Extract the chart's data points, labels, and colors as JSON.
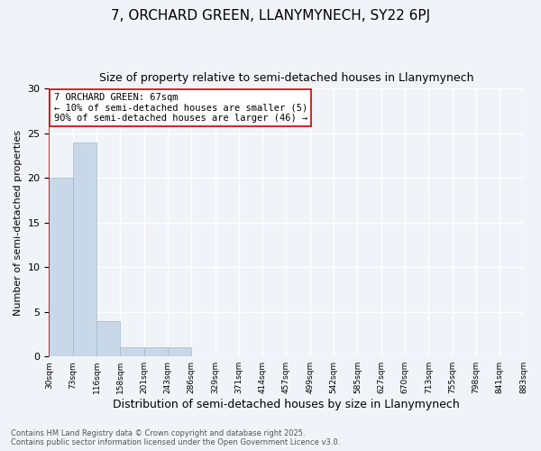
{
  "title": "7, ORCHARD GREEN, LLANYMYNECH, SY22 6PJ",
  "subtitle": "Size of property relative to semi-detached houses in Llanymynech",
  "xlabel": "Distribution of semi-detached houses by size in Llanymynech",
  "ylabel": "Number of semi-detached properties",
  "bar_values": [
    20,
    24,
    4,
    1,
    1,
    1,
    0,
    0,
    0,
    0,
    0,
    0,
    0,
    0,
    0,
    0,
    0,
    0,
    0,
    0
  ],
  "bin_labels": [
    "30sqm",
    "73sqm",
    "116sqm",
    "158sqm",
    "201sqm",
    "243sqm",
    "286sqm",
    "329sqm",
    "371sqm",
    "414sqm",
    "457sqm",
    "499sqm",
    "542sqm",
    "585sqm",
    "627sqm",
    "670sqm",
    "713sqm",
    "755sqm",
    "798sqm",
    "841sqm",
    "883sqm"
  ],
  "bar_color": "#c8d8e8",
  "bar_edge_color": "#a0b8cc",
  "vline_x": 0,
  "vline_color": "#cc0000",
  "annotation_box_text": "7 ORCHARD GREEN: 67sqm\n← 10% of semi-detached houses are smaller (5)\n90% of semi-detached houses are larger (46) →",
  "annotation_box_color": "#cc0000",
  "annotation_fontsize": 7.5,
  "ylim": [
    0,
    30
  ],
  "yticks": [
    0,
    5,
    10,
    15,
    20,
    25,
    30
  ],
  "background_color": "#f0f4f8",
  "grid_color": "#ffffff",
  "footer_text": "Contains HM Land Registry data © Crown copyright and database right 2025.\nContains public sector information licensed under the Open Government Licence v3.0.",
  "title_fontsize": 11,
  "subtitle_fontsize": 9,
  "xlabel_fontsize": 9,
  "ylabel_fontsize": 8
}
